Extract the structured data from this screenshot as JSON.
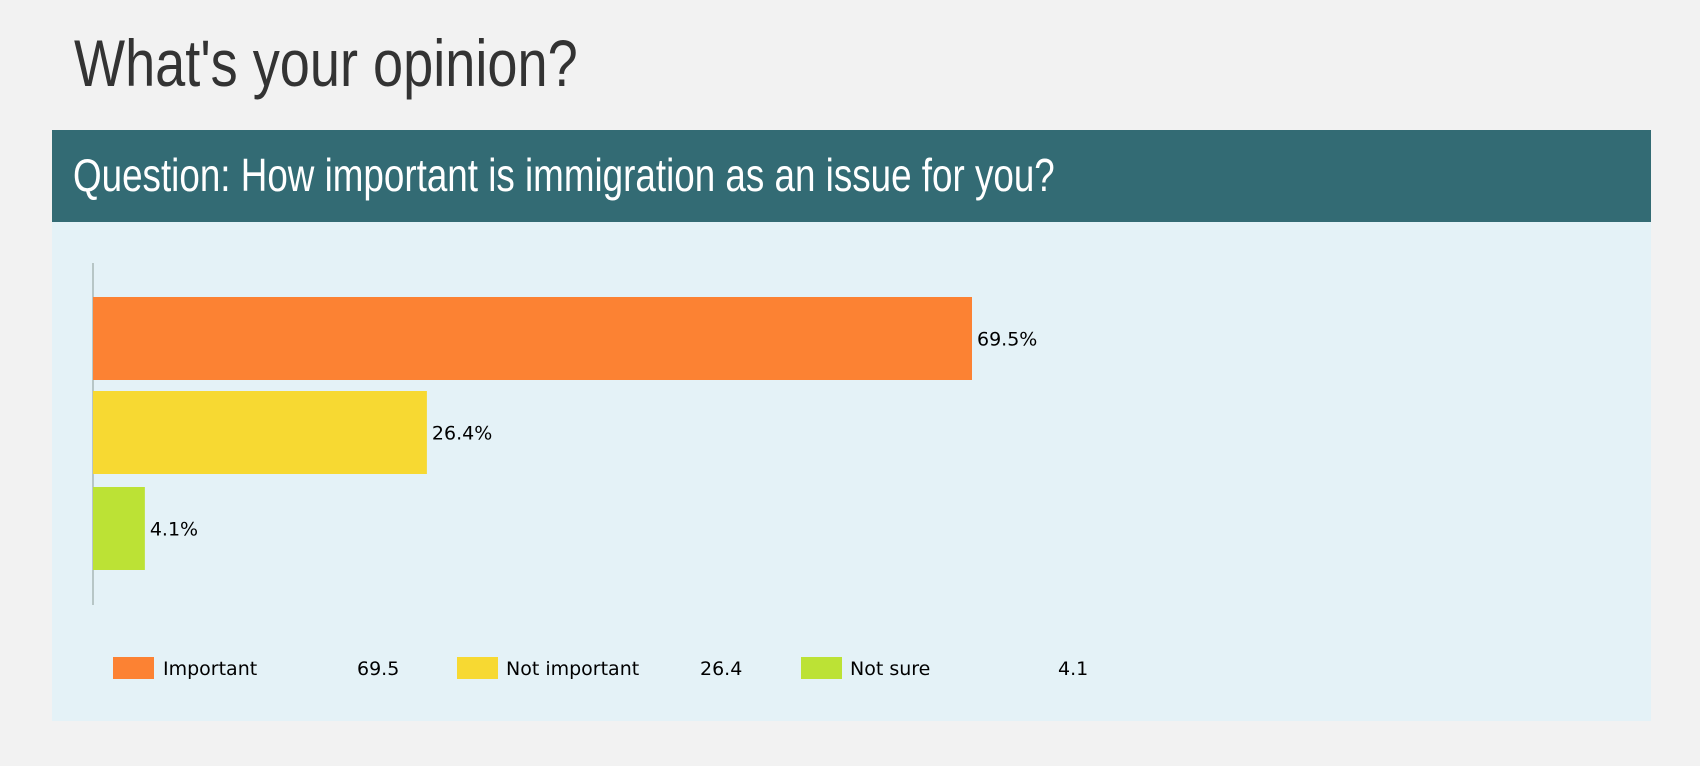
{
  "page": {
    "title": "What's your opinion?"
  },
  "question": {
    "text": "Question: How important is immigration as an issue for you?"
  },
  "colors": {
    "background": "#f2f2f2",
    "header": "#336b74",
    "panel": "#e4f2f7"
  },
  "chart_data": {
    "type": "bar",
    "orientation": "horizontal",
    "categories": [
      "Important",
      "Not important",
      "Not sure"
    ],
    "values": [
      69.5,
      26.4,
      4.1
    ],
    "data_labels": [
      "69.5%",
      "26.4%",
      "4.1%"
    ],
    "legend_values": [
      "69.5",
      "26.4",
      "4.1"
    ],
    "colors": [
      "#fc8233",
      "#f7d932",
      "#bce235"
    ],
    "xlim": [
      0,
      100
    ],
    "legend_position": "bottom",
    "grid": false
  }
}
